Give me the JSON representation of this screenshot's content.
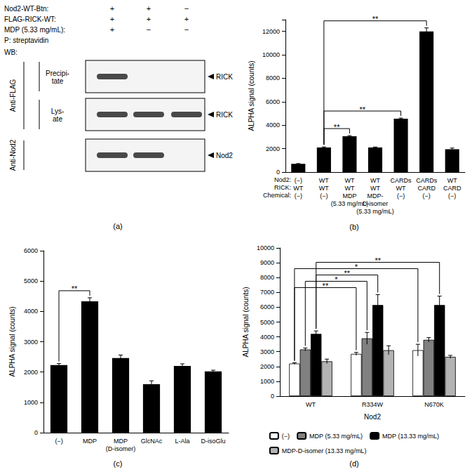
{
  "blot": {
    "caption": "(a)",
    "conditions": [
      {
        "label": "Nod2-WT-Btn:",
        "lanes": [
          "+",
          "+",
          "−"
        ]
      },
      {
        "label": "FLAG-RICK-WT:",
        "lanes": [
          "+",
          "+",
          "+"
        ]
      },
      {
        "label": "MDP (5.33 mg/mL):",
        "lanes": [
          "+",
          "−",
          "−"
        ]
      }
    ],
    "precipitation": "P: streptavidin",
    "detection": "WB:",
    "antibodies": [
      {
        "label": "Anti-FLAG",
        "panels": [
          {
            "label": "Precipi-\ntate",
            "target": "RICK",
            "bands": [
              true,
              false,
              false
            ]
          },
          {
            "label": "Lys-\nate",
            "target": "RICK",
            "bands": [
              true,
              true,
              true
            ]
          }
        ]
      },
      {
        "label": "Anti-Nod2",
        "panels": [
          {
            "target": "Nod2",
            "bands": [
              true,
              true,
              false
            ]
          }
        ]
      }
    ]
  },
  "chart_data": [
    {
      "caption": "(b)",
      "type": "bar",
      "ylabel": "ALPHA signal (counts)",
      "x_rows": [
        {
          "label": "Nod2:",
          "values": [
            "(−)",
            "WT",
            "WT",
            "WT",
            "CARDs",
            "CARDs",
            "WT"
          ]
        },
        {
          "label": "RICK:",
          "values": [
            "WT",
            "WT",
            "WT",
            "WT",
            "WT",
            "CARD",
            "CARD"
          ]
        },
        {
          "label": "Chemical:",
          "values": [
            "(−)",
            "(−)",
            "MDP\n(5.33 mg/mL)",
            "MDP-\nD-isomer\n(5.33 mg/mL)",
            "(−)",
            "(−)",
            "(−)"
          ]
        }
      ],
      "values": [
        700,
        2100,
        3050,
        2100,
        4550,
        12000,
        1950
      ],
      "errors": [
        30,
        50,
        60,
        40,
        60,
        300,
        100
      ],
      "color": "#000000",
      "ylim": [
        0,
        13000
      ],
      "yticks": [
        0,
        2000,
        4000,
        6000,
        8000,
        10000,
        12000
      ],
      "grid": false,
      "significance": [
        {
          "from": 1,
          "to": 2,
          "label": "**"
        },
        {
          "from": 1,
          "to": 4,
          "label": "**"
        },
        {
          "from": 1,
          "to": 5,
          "label": "**"
        }
      ]
    },
    {
      "caption": "(c)",
      "type": "bar",
      "ylabel": "ALPHA signal (counts)",
      "categories": [
        "(−)",
        "MDP",
        "MDP\n(D-isomer)",
        "GlcNAc",
        "L-Ala",
        "D-isoGlu"
      ],
      "values": [
        2230,
        4330,
        2460,
        1600,
        2200,
        2020
      ],
      "errors": [
        50,
        120,
        100,
        110,
        70,
        40
      ],
      "color": "#000000",
      "ylim": [
        0,
        6000
      ],
      "yticks": [
        0,
        1000,
        2000,
        3000,
        4000,
        5000,
        6000
      ],
      "grid": false,
      "significance": [
        {
          "from": "(−)",
          "to": "MDP",
          "label": "**"
        }
      ]
    },
    {
      "caption": "(d)",
      "type": "bar",
      "ylabel": "ALPHA signal (counts)",
      "xlabel": "Nod2",
      "categories": [
        "WT",
        "R334W",
        "N670K"
      ],
      "series": [
        {
          "name": "(−)",
          "color": "#ffffff",
          "values": [
            2200,
            2850,
            3100
          ],
          "errors": [
            50,
            100,
            400
          ]
        },
        {
          "name": "MDP (5.33 mg/mL)",
          "color": "#808080",
          "values": [
            3150,
            3900,
            3800
          ],
          "errors": [
            100,
            400,
            150
          ]
        },
        {
          "name": "MDP (13.33 mg/mL)",
          "color": "#000000",
          "values": [
            4200,
            6150,
            6150
          ],
          "errors": [
            200,
            700,
            600
          ]
        },
        {
          "name": "MDP-D-isomer (13.33 mg/mL)",
          "color": "#b3b3b3",
          "values": [
            2350,
            3100,
            2650
          ],
          "errors": [
            150,
            300,
            100
          ]
        }
      ],
      "ylim": [
        0,
        10000
      ],
      "yticks": [
        0,
        1000,
        2000,
        3000,
        4000,
        5000,
        6000,
        7000,
        8000,
        9000,
        10000
      ],
      "grid": false,
      "legend": "bottom",
      "significance": [
        {
          "from": {
            "category": "WT",
            "series": "(−)"
          },
          "to": {
            "category": "R334W",
            "series": "(−)"
          },
          "label": "**"
        },
        {
          "from": {
            "category": "WT",
            "series": "MDP (5.33 mg/mL)"
          },
          "to": {
            "category": "R334W",
            "series": "MDP (5.33 mg/mL)"
          },
          "label": "*"
        },
        {
          "from": {
            "category": "WT",
            "series": "MDP (13.33 mg/mL)"
          },
          "to": {
            "category": "R334W",
            "series": "MDP (13.33 mg/mL)"
          },
          "label": "**"
        },
        {
          "from": {
            "category": "WT",
            "series": "(−)"
          },
          "to": {
            "category": "N670K",
            "series": "(−)"
          },
          "label": "*"
        },
        {
          "from": {
            "category": "WT",
            "series": "MDP (13.33 mg/mL)"
          },
          "to": {
            "category": "N670K",
            "series": "MDP (13.33 mg/mL)"
          },
          "label": "**"
        }
      ]
    }
  ]
}
